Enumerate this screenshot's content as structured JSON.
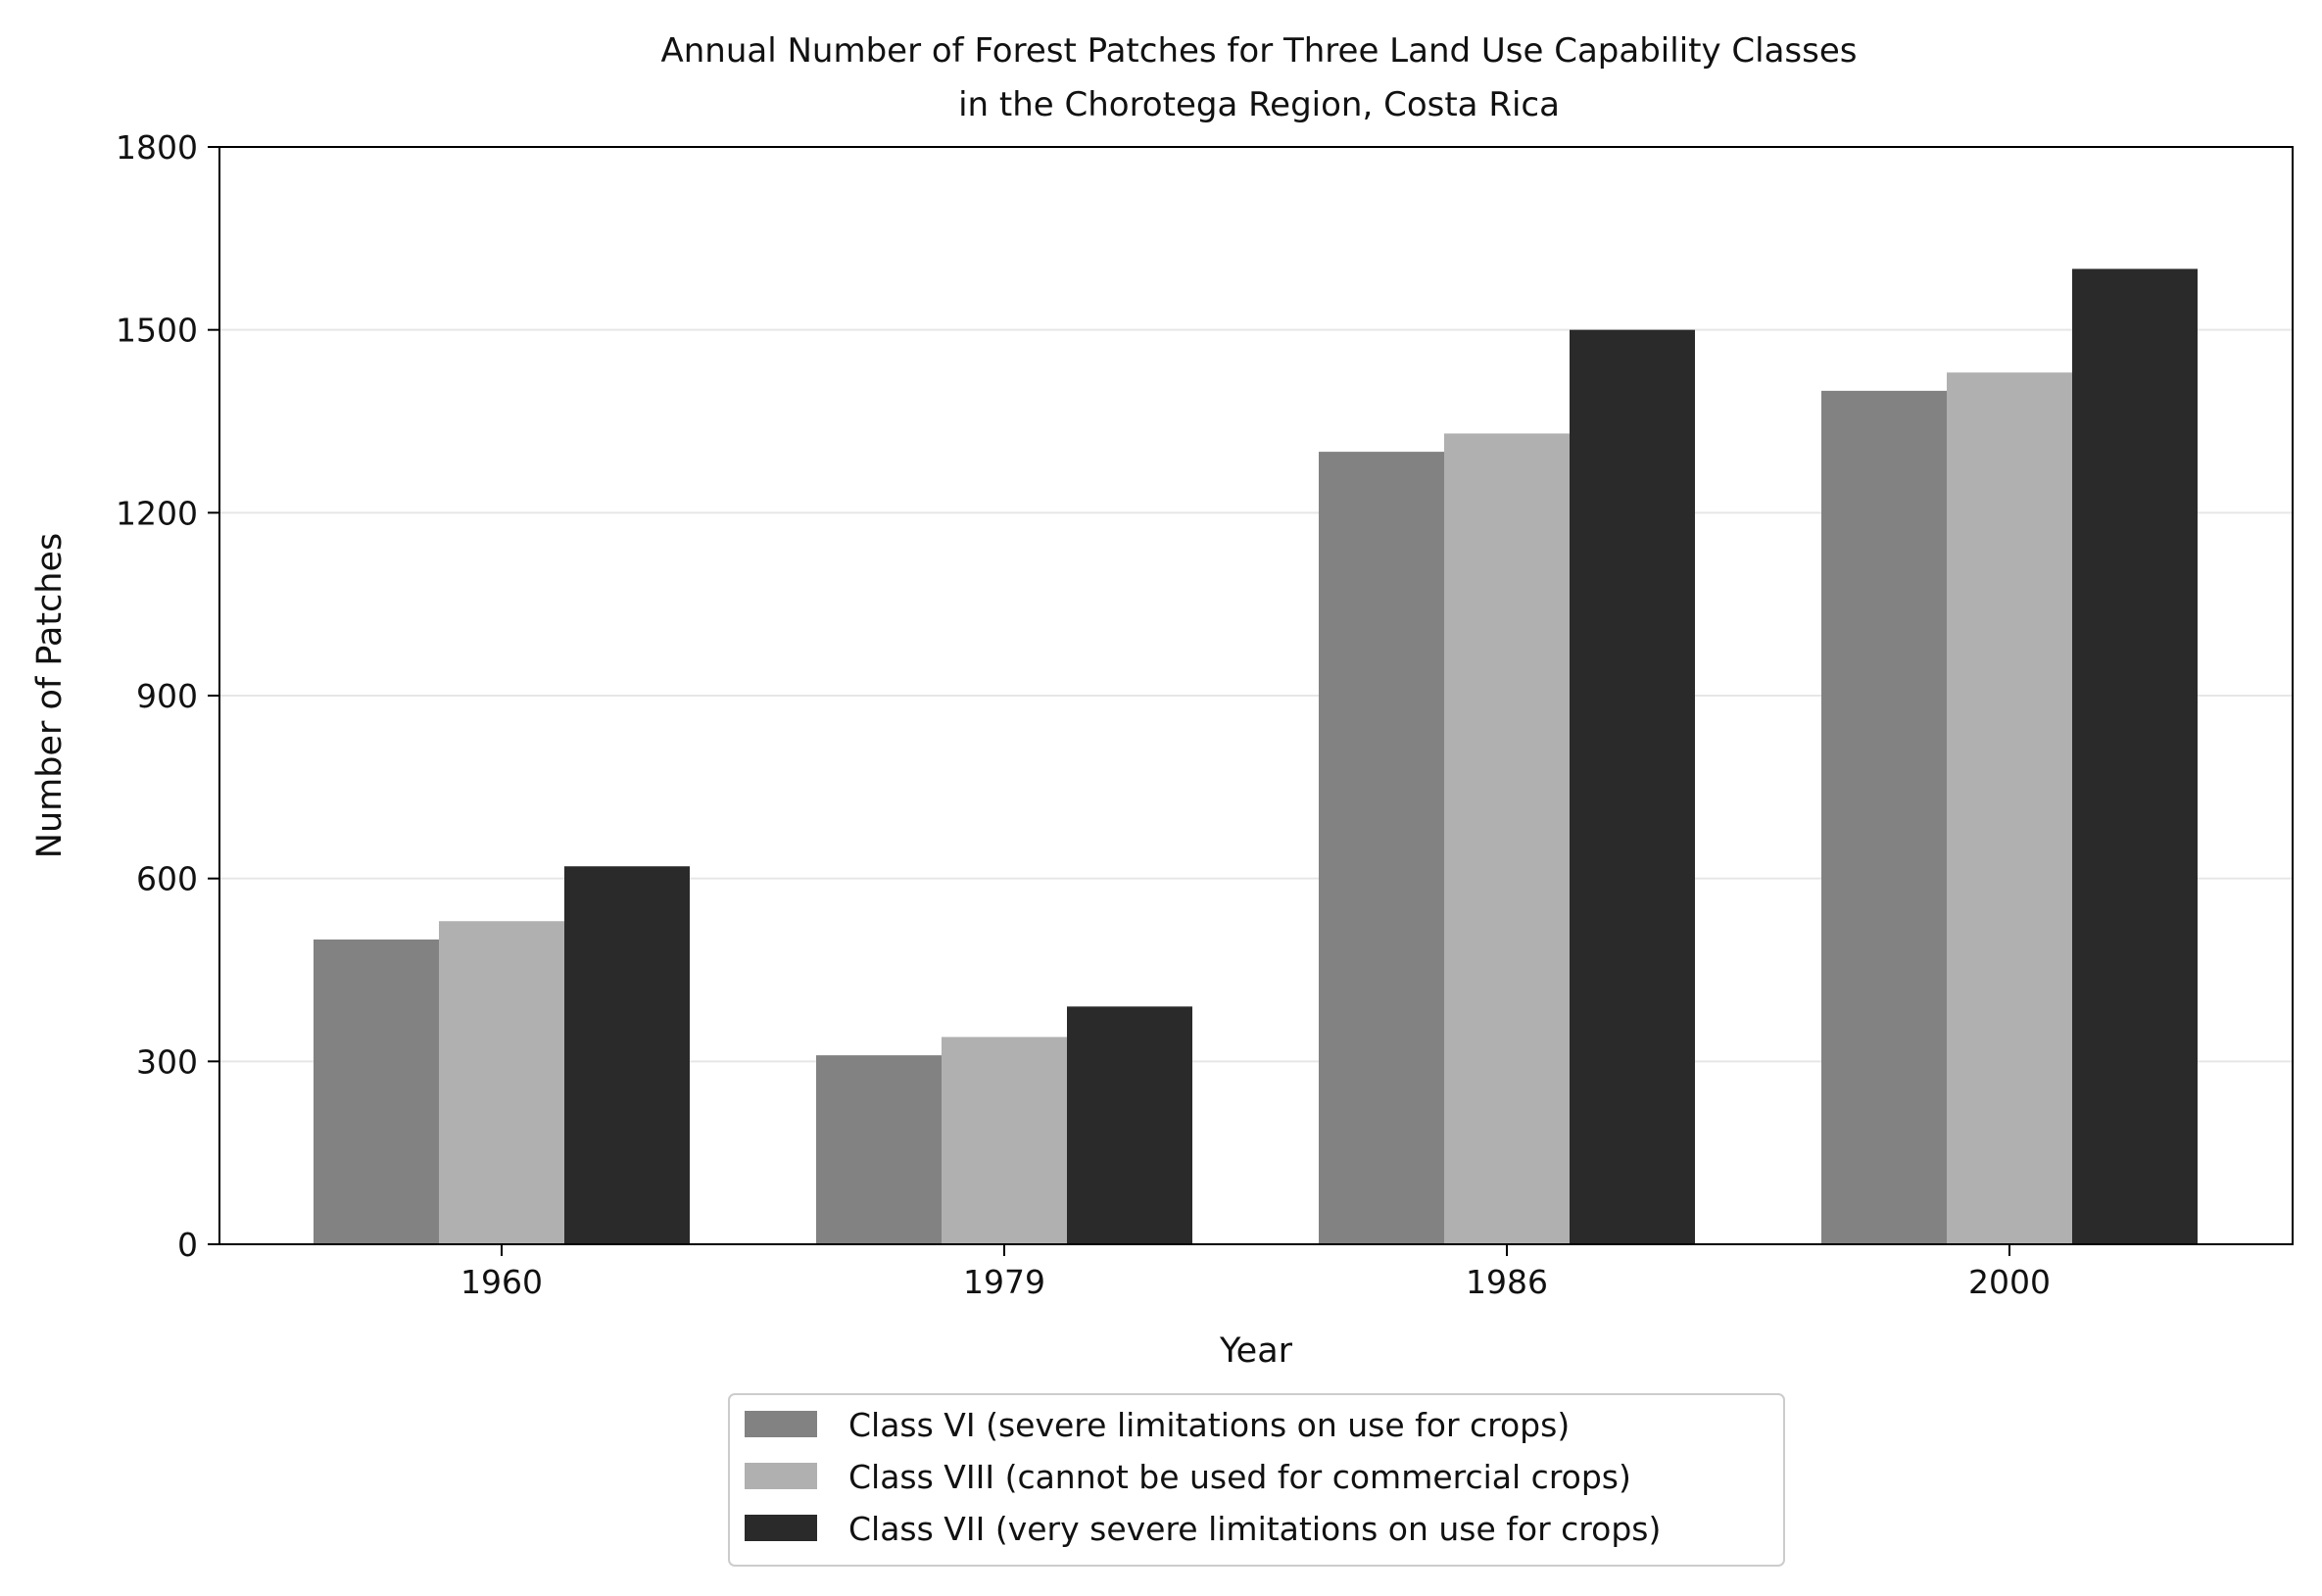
{
  "chart_data": {
    "type": "bar",
    "title": [
      "Annual Number of Forest Patches for Three Land Use Capability Classes",
      "in the Chorotega Region, Costa Rica"
    ],
    "xlabel": "Year",
    "ylabel": "Number of Patches",
    "categories": [
      "1960",
      "1979",
      "1986",
      "2000"
    ],
    "series": [
      {
        "name": "Class VI (severe limitations on use for crops)",
        "color": "#828282",
        "values": [
          500,
          310,
          1300,
          1400
        ]
      },
      {
        "name": "Class VIII (cannot be used for commercial crops)",
        "color": "#b0b0b0",
        "values": [
          530,
          340,
          1330,
          1430
        ]
      },
      {
        "name": "Class VII (very severe limitations on use for crops)",
        "color": "#2a2a2a",
        "values": [
          620,
          390,
          1500,
          1600
        ]
      }
    ],
    "ylim": [
      0,
      1800
    ],
    "yticks": [
      0,
      300,
      600,
      900,
      1200,
      1500,
      1800
    ],
    "grid": "horizontal",
    "legend_position": "below"
  }
}
